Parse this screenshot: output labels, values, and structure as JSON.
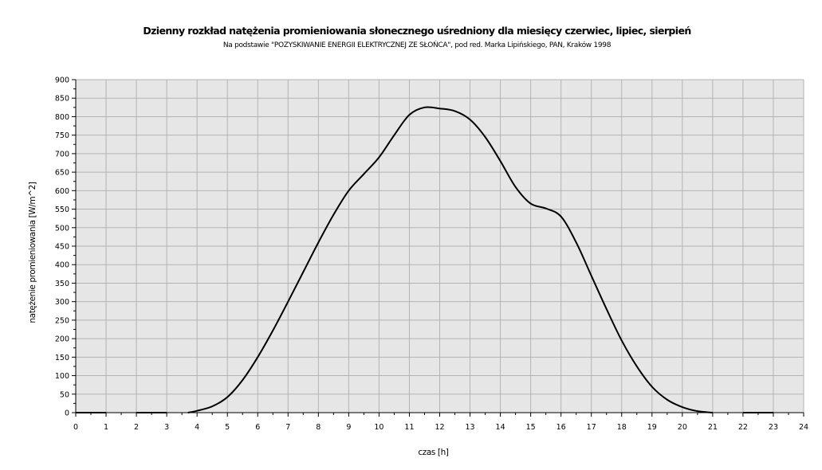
{
  "chart_data": {
    "type": "line",
    "title": "Dzienny rozkład natężenia promieniowania słonecznego uśredniony dla miesięcy czerwiec, lipiec, sierpień",
    "subtitle": "Na podstawie \"POZYSKIWANIE ENERGII ELEKTRYCZNEJ ZE SŁOŃCA\", pod red. Marka Lipińskiego, PAN, Kraków 1998",
    "xlabel": "czas [h]",
    "ylabel": "natężenie promieniowania [W/m^2]",
    "xlim": [
      0,
      24
    ],
    "ylim": [
      0,
      900
    ],
    "x_ticks": [
      "0",
      "1",
      "2",
      "3",
      "4",
      "5",
      "6",
      "7",
      "8",
      "9",
      "10",
      "11",
      "12",
      "13",
      "14",
      "15",
      "16",
      "17",
      "18",
      "19",
      "20",
      "21",
      "22",
      "23",
      "24"
    ],
    "y_ticks": [
      "0",
      "50",
      "100",
      "150",
      "200",
      "250",
      "300",
      "350",
      "400",
      "450",
      "500",
      "550",
      "600",
      "650",
      "700",
      "750",
      "800",
      "850",
      "900"
    ],
    "grid": true,
    "plot_background": "#e6e6e6",
    "grid_color": "#b3b3b3",
    "line_color": "#000000",
    "series": [
      {
        "segments": [
          [
            [
              0,
              0
            ],
            [
              1,
              0
            ]
          ],
          [
            [
              2,
              0
            ],
            [
              3,
              0
            ]
          ],
          [
            [
              3.7,
              0
            ],
            [
              4,
              5
            ],
            [
              4.5,
              17
            ],
            [
              5,
              42
            ],
            [
              5.5,
              88
            ],
            [
              6,
              150
            ],
            [
              6.5,
              222
            ],
            [
              7,
              300
            ],
            [
              7.5,
              380
            ],
            [
              8,
              460
            ],
            [
              8.5,
              535
            ],
            [
              9,
              600
            ],
            [
              9.5,
              645
            ],
            [
              10,
              690
            ],
            [
              10.5,
              750
            ],
            [
              11,
              805
            ],
            [
              11.5,
              825
            ],
            [
              12,
              822
            ],
            [
              12.5,
              815
            ],
            [
              13,
              792
            ],
            [
              13.5,
              745
            ],
            [
              14,
              680
            ],
            [
              14.5,
              610
            ],
            [
              15,
              565
            ],
            [
              15.5,
              552
            ],
            [
              16,
              530
            ],
            [
              16.5,
              460
            ],
            [
              17,
              370
            ],
            [
              17.5,
              280
            ],
            [
              18,
              195
            ],
            [
              18.5,
              125
            ],
            [
              19,
              70
            ],
            [
              19.5,
              35
            ],
            [
              20,
              15
            ],
            [
              20.5,
              4
            ],
            [
              21,
              0
            ]
          ],
          [
            [
              22,
              0
            ],
            [
              23,
              0
            ]
          ]
        ]
      }
    ]
  }
}
